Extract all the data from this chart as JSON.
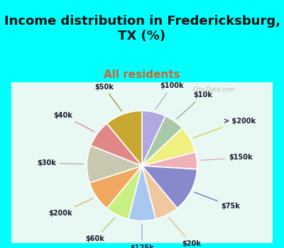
{
  "title": "Income distribution in Fredericksburg,\nTX (%)",
  "subtitle": "All residents",
  "watermark": "City-Data.com",
  "background_cyan": "#00FFFF",
  "background_chart": "#e8f8f2",
  "labels": [
    "$100k",
    "$10k",
    "> $200k",
    "$150k",
    "$75k",
    "$20k",
    "$125k",
    "$60k",
    "$200k",
    "$30k",
    "$40k",
    "$50k"
  ],
  "values": [
    7,
    6,
    8,
    5,
    13,
    7,
    8,
    7,
    9,
    11,
    8,
    11
  ],
  "colors": [
    "#b0a8e0",
    "#a8c8a8",
    "#f0f080",
    "#f0b0b8",
    "#8888cc",
    "#f0c8a0",
    "#a8c8f0",
    "#c8f080",
    "#f0a860",
    "#c8c8b0",
    "#e08888",
    "#c8a830"
  ],
  "title_fontsize": 13,
  "subtitle_fontsize": 11,
  "title_color": "#111111",
  "subtitle_color": "#cc6633"
}
